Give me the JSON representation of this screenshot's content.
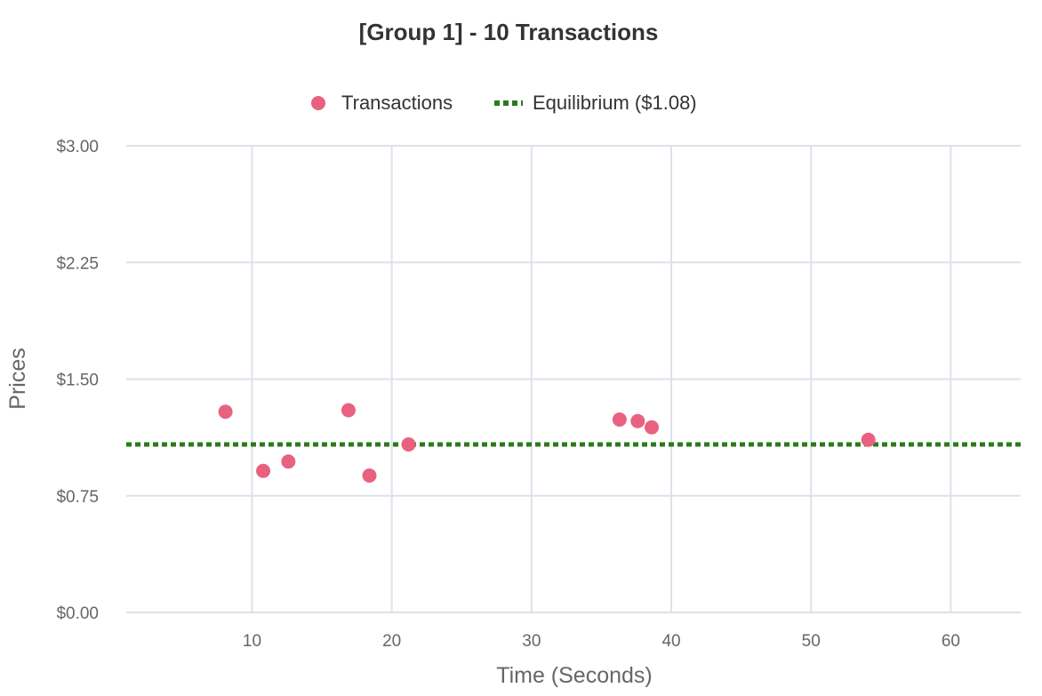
{
  "chart_data": {
    "type": "scatter",
    "title": "[Group 1] - 10 Transactions",
    "xlabel": "Time (Seconds)",
    "ylabel": "Prices",
    "xlim": [
      1,
      65
    ],
    "ylim": [
      0,
      3
    ],
    "x_ticks": [
      10,
      20,
      30,
      40,
      50,
      60
    ],
    "y_ticks": [
      0,
      0.75,
      1.5,
      2.25,
      3.0
    ],
    "y_tick_labels": [
      "$0.00",
      "$0.75",
      "$1.50",
      "$2.25",
      "$3.00"
    ],
    "grid": true,
    "legend_position": "top",
    "series": [
      {
        "name": "Transactions",
        "kind": "points",
        "color": "#e8627f",
        "points": [
          {
            "x": 8.1,
            "y": 1.29
          },
          {
            "x": 10.8,
            "y": 0.91
          },
          {
            "x": 12.6,
            "y": 0.97
          },
          {
            "x": 16.9,
            "y": 1.3
          },
          {
            "x": 18.4,
            "y": 0.88
          },
          {
            "x": 21.2,
            "y": 1.08
          },
          {
            "x": 36.3,
            "y": 1.24
          },
          {
            "x": 37.6,
            "y": 1.23
          },
          {
            "x": 38.6,
            "y": 1.19
          },
          {
            "x": 54.1,
            "y": 1.11
          }
        ]
      },
      {
        "name": "Equilibrium ($1.08)",
        "kind": "hline",
        "color": "#2c7a1c",
        "value": 1.08
      }
    ]
  }
}
